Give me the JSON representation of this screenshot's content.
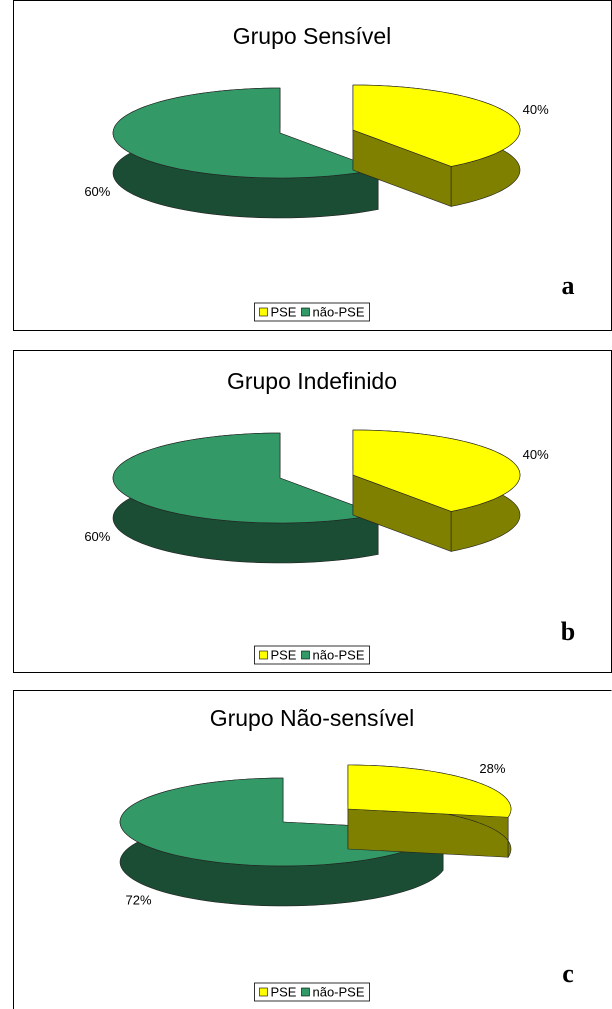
{
  "chart_data": [
    {
      "type": "pie",
      "title": "Grupo Sensível",
      "categories": [
        "PSE",
        "não-PSE"
      ],
      "values": [
        40,
        60
      ],
      "value_labels": [
        "40%",
        "60%"
      ],
      "colors": [
        "#ffff00",
        "#339966"
      ],
      "legend": "bottom",
      "annotation": "a"
    },
    {
      "type": "pie",
      "title": "Grupo Indefinido",
      "categories": [
        "PSE",
        "não-PSE"
      ],
      "values": [
        40,
        60
      ],
      "value_labels": [
        "40%",
        "60%"
      ],
      "colors": [
        "#ffff00",
        "#339966"
      ],
      "legend": "bottom",
      "annotation": "b"
    },
    {
      "type": "pie",
      "title": "Grupo Não-sensível",
      "categories": [
        "PSE",
        "não-PSE"
      ],
      "values": [
        28,
        72
      ],
      "value_labels": [
        "28%",
        "72%"
      ],
      "colors": [
        "#ffff00",
        "#339966"
      ],
      "legend": "bottom",
      "annotation": "c"
    }
  ]
}
